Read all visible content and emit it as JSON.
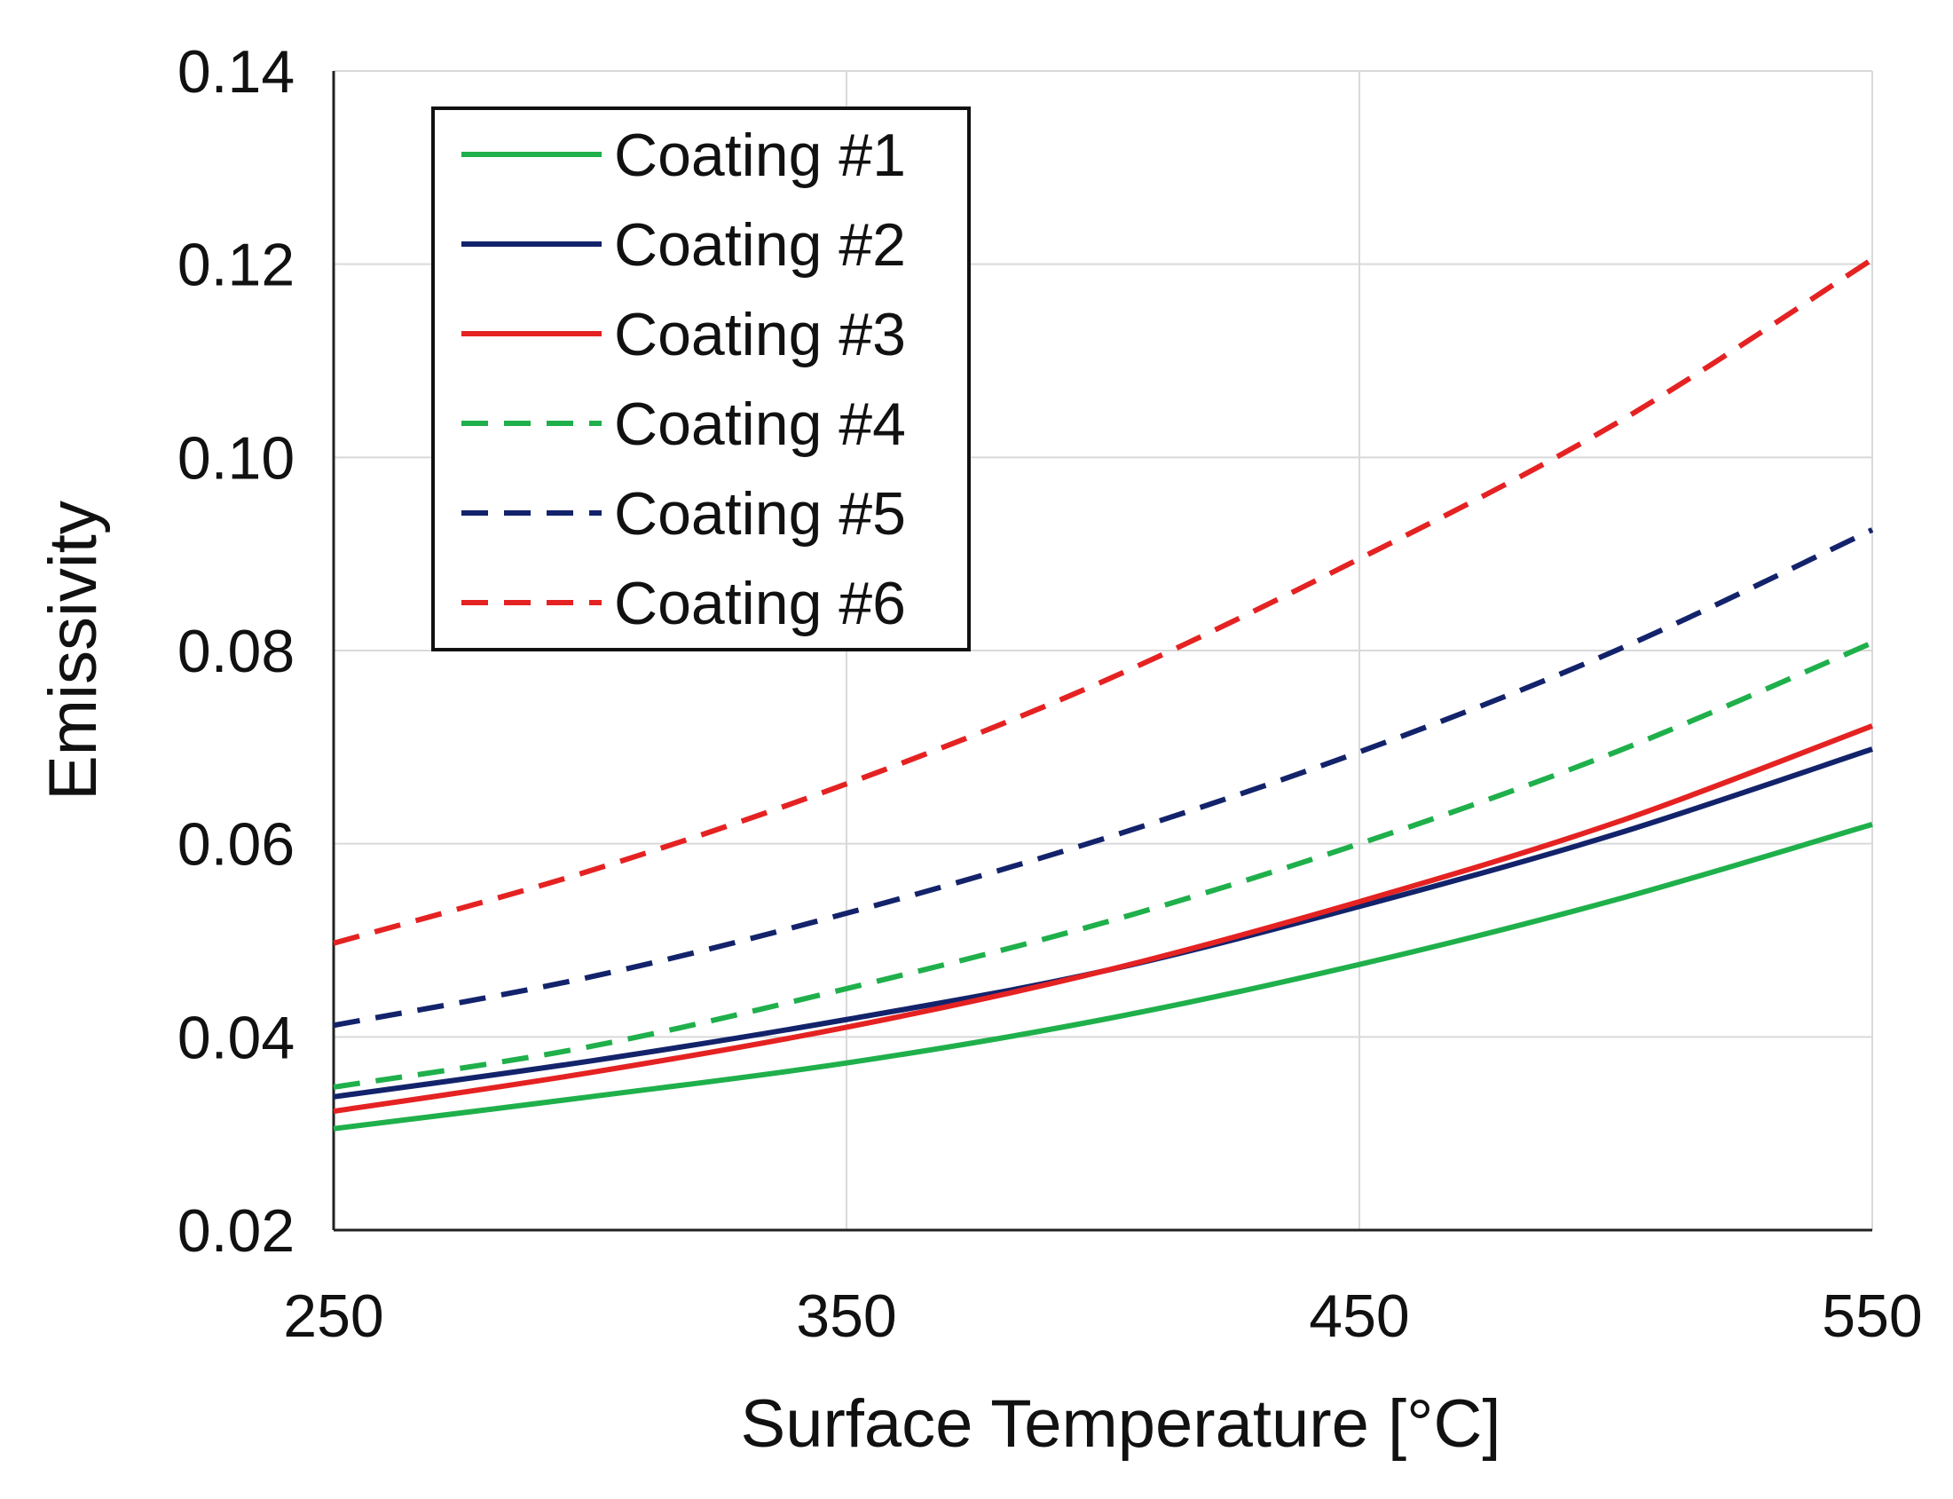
{
  "chart_data": {
    "type": "line",
    "xlabel": "Surface Temperature [°C]",
    "ylabel": "Emissivity",
    "xlim": [
      250,
      550
    ],
    "ylim": [
      0.02,
      0.14
    ],
    "xticks": [
      "250",
      "350",
      "450",
      "550"
    ],
    "yticks": [
      "0.02",
      "0.04",
      "0.06",
      "0.08",
      "0.10",
      "0.12",
      "0.14"
    ],
    "grid": true,
    "legend_position": "top-left",
    "x": [
      250,
      300,
      350,
      400,
      450,
      500,
      550
    ],
    "series": [
      {
        "name": "Coating #1",
        "color": "#1fb04b",
        "dash": "solid",
        "values": [
          0.0305,
          0.0338,
          0.0373,
          0.0418,
          0.0475,
          0.0542,
          0.062
        ]
      },
      {
        "name": "Coating #2",
        "color": "#13236b",
        "dash": "solid",
        "values": [
          0.0338,
          0.0375,
          0.0418,
          0.0468,
          0.0535,
          0.061,
          0.0698
        ]
      },
      {
        "name": "Coating #3",
        "color": "#e52222",
        "dash": "solid",
        "values": [
          0.0323,
          0.0363,
          0.041,
          0.0468,
          0.054,
          0.0622,
          0.0722
        ]
      },
      {
        "name": "Coating #4",
        "color": "#1fb04b",
        "dash": "dashed",
        "values": [
          0.0348,
          0.039,
          0.045,
          0.0518,
          0.06,
          0.0695,
          0.0808
        ]
      },
      {
        "name": "Coating #5",
        "color": "#13236b",
        "dash": "dashed",
        "values": [
          0.0412,
          0.0462,
          0.0528,
          0.0605,
          0.0695,
          0.08,
          0.0925
        ]
      },
      {
        "name": "Coating #6",
        "color": "#e52222",
        "dash": "dashed",
        "values": [
          0.0497,
          0.0572,
          0.0662,
          0.0768,
          0.0895,
          0.1035,
          0.1205
        ]
      }
    ]
  }
}
